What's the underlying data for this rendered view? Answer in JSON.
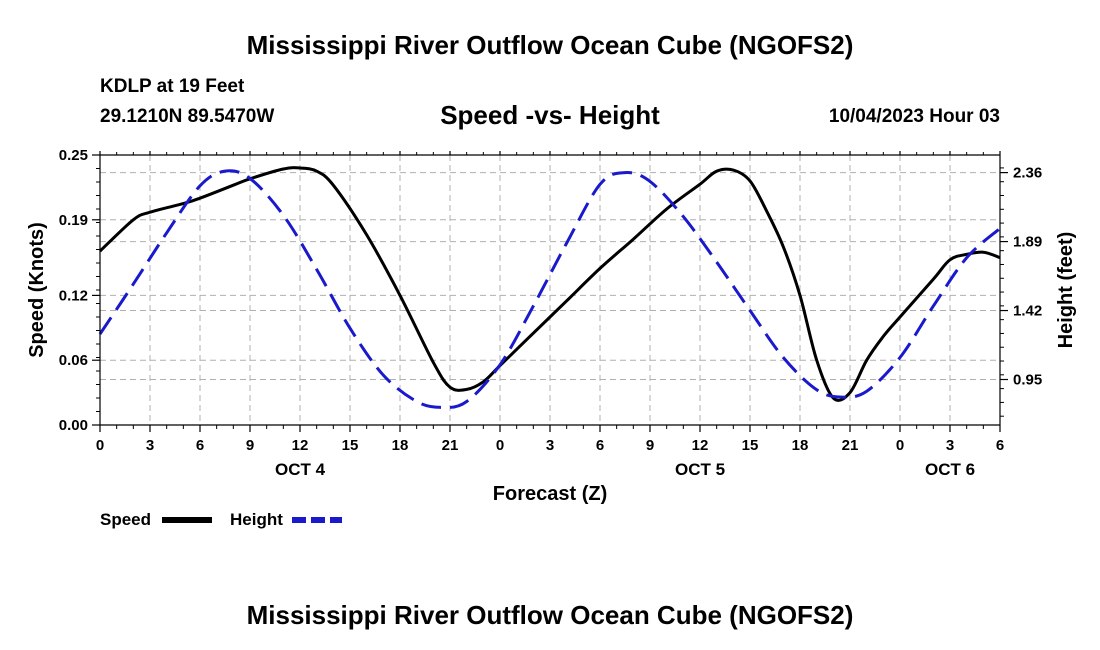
{
  "header": {
    "title": "Mississippi River Outflow Ocean Cube (NGOFS2)",
    "station": "KDLP at 19 Feet",
    "coords": "29.1210N  89.5470W",
    "subtitle": "Speed -vs- Height",
    "datetime": "10/04/2023 Hour 03"
  },
  "footer": {
    "title": "Mississippi River Outflow Ocean Cube (NGOFS2)"
  },
  "colors": {
    "speed": "#000000",
    "height": "#1a1acc",
    "grid": "#b0b0b0"
  },
  "chart_data": {
    "type": "line",
    "title": "Speed -vs- Height",
    "xlabel": "Forecast (Z)",
    "ylabel": "Speed (Knots)",
    "y2label": "Height (feet)",
    "x_range": [
      0,
      54
    ],
    "x_tick_labels": [
      "0",
      "3",
      "6",
      "9",
      "12",
      "15",
      "18",
      "21",
      "0",
      "3",
      "6",
      "9",
      "12",
      "15",
      "18",
      "21",
      "0",
      "3",
      "6"
    ],
    "date_labels": [
      {
        "text": "OCT 4",
        "hour": 12
      },
      {
        "text": "OCT 5",
        "hour": 36
      },
      {
        "text": "OCT 6",
        "hour": 51
      }
    ],
    "ylim": [
      0,
      0.25
    ],
    "y_ticks": [
      0.0,
      0.06,
      0.12,
      0.19,
      0.25
    ],
    "y_tick_labels": [
      "0.00",
      "0.06",
      "0.12",
      "0.19",
      "0.25"
    ],
    "y2lim": [
      0.64,
      2.48
    ],
    "y2_ticks": [
      0.95,
      1.42,
      1.89,
      2.36
    ],
    "y2_tick_labels": [
      "0.95",
      "1.42",
      "1.89",
      "2.36"
    ],
    "grid": true,
    "legend": [
      {
        "label": "Speed",
        "style": "solid"
      },
      {
        "label": "Height",
        "style": "dashed"
      }
    ],
    "series": [
      {
        "name": "Speed",
        "axis": "left",
        "style": "solid",
        "x": [
          0,
          2,
          3,
          5,
          6,
          8,
          9,
          11,
          12,
          13,
          14,
          16,
          18,
          20,
          21,
          22,
          23,
          24,
          26,
          28,
          30,
          32,
          34,
          36,
          37,
          38,
          39,
          40,
          41,
          42,
          43,
          44,
          45,
          46,
          47,
          48,
          50,
          51,
          52,
          53,
          54
        ],
        "y": [
          0.161,
          0.19,
          0.197,
          0.205,
          0.21,
          0.222,
          0.228,
          0.237,
          0.238,
          0.235,
          0.222,
          0.176,
          0.12,
          0.058,
          0.035,
          0.033,
          0.04,
          0.055,
          0.085,
          0.115,
          0.145,
          0.172,
          0.2,
          0.223,
          0.235,
          0.236,
          0.226,
          0.198,
          0.165,
          0.12,
          0.06,
          0.025,
          0.03,
          0.06,
          0.082,
          0.1,
          0.135,
          0.153,
          0.158,
          0.16,
          0.155
        ]
      },
      {
        "name": "Height",
        "axis": "right",
        "style": "dashed",
        "x": [
          0,
          2,
          4,
          6,
          7.5,
          9,
          11,
          13,
          15,
          17,
          19,
          20.5,
          22,
          24,
          26,
          28,
          30,
          31.5,
          33,
          35,
          37,
          39,
          41,
          43,
          44.5,
          46,
          48,
          50,
          52,
          54
        ],
        "y": [
          1.26,
          1.6,
          1.95,
          2.27,
          2.37,
          2.32,
          2.07,
          1.7,
          1.3,
          0.98,
          0.8,
          0.76,
          0.8,
          1.05,
          1.45,
          1.88,
          2.28,
          2.36,
          2.3,
          2.06,
          1.75,
          1.42,
          1.1,
          0.88,
          0.83,
          0.87,
          1.1,
          1.45,
          1.78,
          1.98
        ]
      }
    ]
  }
}
